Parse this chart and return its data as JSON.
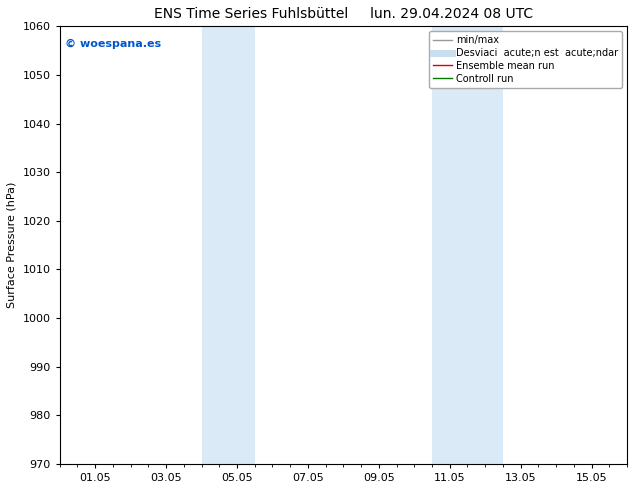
{
  "title_left": "ENS Time Series Fuhlsbüttel",
  "title_right": "lun. 29.04.2024 08 UTC",
  "ylabel": "Surface Pressure (hPa)",
  "ylim": [
    970,
    1060
  ],
  "yticks": [
    970,
    980,
    990,
    1000,
    1010,
    1020,
    1030,
    1040,
    1050,
    1060
  ],
  "xlim": [
    0,
    16
  ],
  "xticks": [
    1,
    3,
    5,
    7,
    9,
    11,
    13,
    15
  ],
  "xticklabels": [
    "01.05",
    "03.05",
    "05.05",
    "07.05",
    "09.05",
    "11.05",
    "13.05",
    "15.05"
  ],
  "watermark": "© woespana.es",
  "watermark_color": "#0055cc",
  "background_color": "#ffffff",
  "plot_background_color": "#ffffff",
  "shade_regions": [
    {
      "xmin": 4.0,
      "xmax": 5.5,
      "color": "#daeaf7"
    },
    {
      "xmin": 10.5,
      "xmax": 12.5,
      "color": "#daeaf7"
    }
  ],
  "legend_entries": [
    {
      "label": "min/max",
      "color": "#999999",
      "lw": 1.0
    },
    {
      "label": "Desviaci  acute;n est  acute;ndar",
      "color": "#c8dff0",
      "lw": 5
    },
    {
      "label": "Ensemble mean run",
      "color": "#dd0000",
      "lw": 1.0
    },
    {
      "label": "Controll run",
      "color": "#007700",
      "lw": 1.0
    }
  ],
  "font_size_title": 10,
  "font_size_axis": 8,
  "font_size_tick": 8,
  "font_size_legend": 7,
  "font_size_watermark": 8,
  "tick_color": "#000000",
  "axis_color": "#000000",
  "title_gap": "     "
}
